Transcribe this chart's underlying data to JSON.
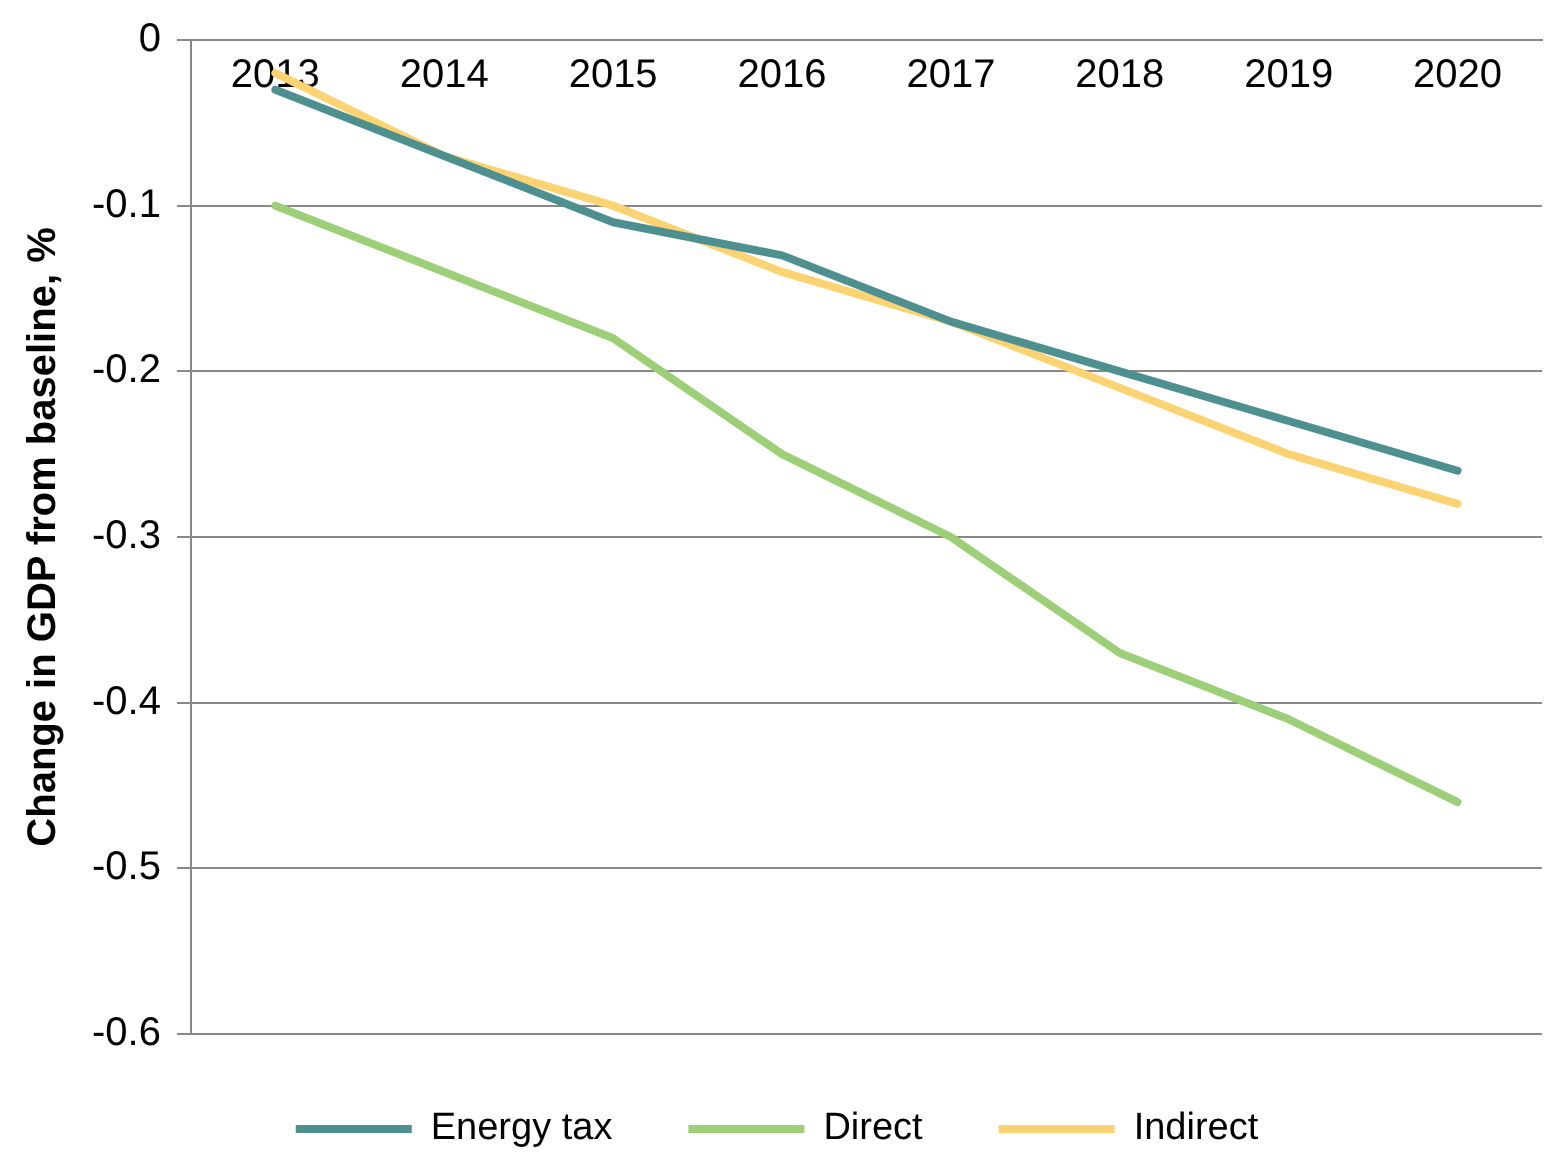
{
  "chart_data": {
    "type": "line",
    "ylabel": "Change in GDP from baseline, %",
    "categories": [
      "2013",
      "2014",
      "2015",
      "2016",
      "2017",
      "2018",
      "2019",
      "2020"
    ],
    "series": [
      {
        "name": "Energy tax",
        "color": "#4e8f8f",
        "values": [
          -0.03,
          -0.07,
          -0.11,
          -0.13,
          -0.17,
          -0.2,
          -0.23,
          -0.26
        ]
      },
      {
        "name": "Direct",
        "color": "#9ccf78",
        "values": [
          -0.1,
          -0.14,
          -0.18,
          -0.25,
          -0.3,
          -0.37,
          -0.41,
          -0.46
        ]
      },
      {
        "name": "Indirect",
        "color": "#fcd373",
        "values": [
          -0.02,
          -0.07,
          -0.1,
          -0.14,
          -0.17,
          -0.21,
          -0.25,
          -0.28
        ]
      }
    ],
    "ylim": [
      -0.6,
      0
    ],
    "yticks": [
      -0.6,
      -0.5,
      -0.4,
      -0.3,
      -0.2,
      -0.1,
      0
    ],
    "grid": "y",
    "legend": "bottom",
    "marker": "none",
    "line_style": "solid"
  }
}
